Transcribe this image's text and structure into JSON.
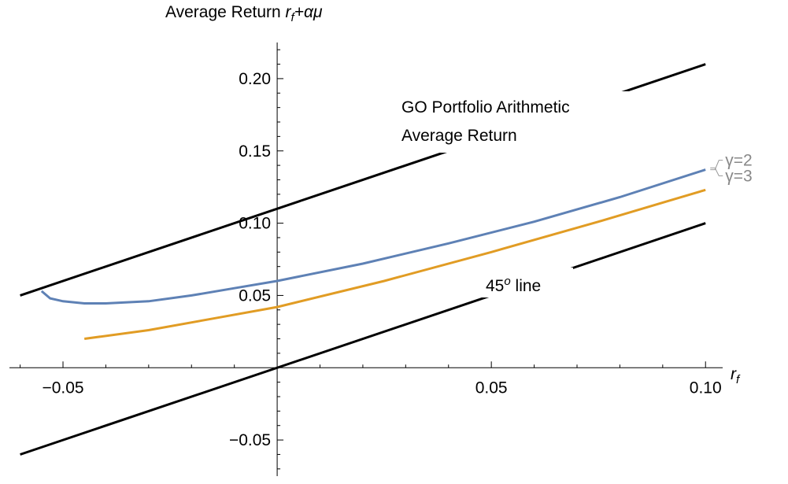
{
  "chart_data": {
    "type": "line",
    "y_label": {
      "text": "Average Return ",
      "var": "r",
      "sub": "f",
      "rest": "+αμ"
    },
    "x_label": {
      "var": "r",
      "sub": "f"
    },
    "xlim": [
      -0.0625,
      0.104
    ],
    "ylim": [
      -0.075,
      0.225
    ],
    "xticks": [
      {
        "value": -0.05,
        "label": "−0.05"
      },
      {
        "value": 0.05,
        "label": "0.05"
      },
      {
        "value": 0.1,
        "label": "0.10"
      }
    ],
    "yticks": [
      {
        "value": -0.05,
        "label": "−0.05"
      },
      {
        "value": 0.05,
        "label": "0.05"
      },
      {
        "value": 0.1,
        "label": "0.10"
      },
      {
        "value": 0.15,
        "label": "0.15"
      },
      {
        "value": 0.2,
        "label": "0.20"
      }
    ],
    "xminor": [
      -0.06,
      -0.04,
      -0.03,
      -0.02,
      -0.01,
      0.01,
      0.02,
      0.03,
      0.04,
      0.06,
      0.07,
      0.08,
      0.09
    ],
    "yminor": [
      -0.07,
      -0.06,
      -0.04,
      -0.03,
      -0.02,
      -0.01,
      0.01,
      0.02,
      0.03,
      0.04,
      0.06,
      0.07,
      0.08,
      0.09,
      0.11,
      0.12,
      0.13,
      0.14,
      0.16,
      0.17,
      0.18,
      0.19,
      0.21,
      0.22
    ],
    "series": [
      {
        "color": "#000000",
        "x": [
          -0.06,
          0.1
        ],
        "values": [
          0.05,
          0.21
        ]
      },
      {
        "color": "#000000",
        "x": [
          -0.06,
          0.1
        ],
        "values": [
          -0.06,
          0.1
        ]
      },
      {
        "name": "γ=2",
        "color": "#5e81b5",
        "x": [
          -0.055,
          -0.053,
          -0.05,
          -0.045,
          -0.04,
          -0.03,
          -0.02,
          -0.01,
          0,
          0.02,
          0.04,
          0.06,
          0.08,
          0.1
        ],
        "values": [
          0.053,
          0.048,
          0.046,
          0.0445,
          0.0445,
          0.046,
          0.05,
          0.055,
          0.06,
          0.072,
          0.086,
          0.101,
          0.118,
          0.137
        ]
      },
      {
        "name": "γ=3",
        "color": "#e19c24",
        "x": [
          -0.045,
          -0.03,
          -0.015,
          0,
          0.025,
          0.05,
          0.075,
          0.1
        ],
        "values": [
          0.02,
          0.026,
          0.034,
          0.042,
          0.06,
          0.08,
          0.101,
          0.123
        ]
      }
    ],
    "annotations": [
      {
        "lines": [
          "GO Portfolio Arithmetic",
          "Average Return"
        ]
      },
      {
        "base": "45",
        "sup": "o",
        "after": " line"
      }
    ]
  }
}
